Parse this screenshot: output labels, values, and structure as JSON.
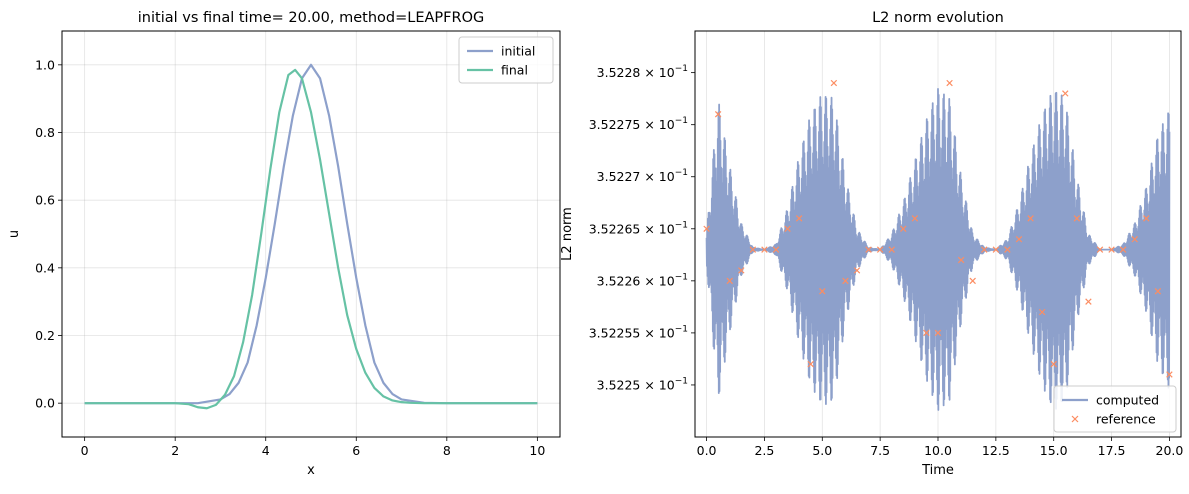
{
  "colors": {
    "initial": "#8da0cb",
    "final": "#66c2a5",
    "computed": "#8da0cb",
    "reference": "#fc8d62"
  },
  "chart_data": [
    {
      "type": "line",
      "title": "initial vs final time= 20.00, method=LEAPFROG",
      "xlabel": "x",
      "ylabel": "u",
      "xlim": [
        -0.5,
        10.5
      ],
      "ylim": [
        -0.1,
        1.1
      ],
      "xticks": [
        0,
        2,
        4,
        6,
        8,
        10
      ],
      "xtick_labels": [
        "0",
        "2",
        "4",
        "6",
        "8",
        "10"
      ],
      "yticks": [
        0.0,
        0.2,
        0.4,
        0.6,
        0.8,
        1.0
      ],
      "ytick_labels": [
        "0.0",
        "0.2",
        "0.4",
        "0.6",
        "0.8",
        "1.0"
      ],
      "grid": true,
      "legend": "upper-right",
      "series": [
        {
          "name": "initial",
          "x": [
            0,
            0.5,
            1,
            1.5,
            2,
            2.5,
            3,
            3.2,
            3.4,
            3.6,
            3.8,
            4,
            4.2,
            4.4,
            4.6,
            4.8,
            5,
            5.2,
            5.4,
            5.6,
            5.8,
            6,
            6.2,
            6.4,
            6.6,
            6.8,
            7,
            7.5,
            8,
            8.5,
            9,
            9.5,
            10
          ],
          "y": [
            0,
            0,
            0,
            0,
            0,
            0,
            0.011,
            0.027,
            0.06,
            0.12,
            0.23,
            0.37,
            0.53,
            0.7,
            0.85,
            0.96,
            1.0,
            0.96,
            0.85,
            0.7,
            0.53,
            0.37,
            0.23,
            0.12,
            0.06,
            0.027,
            0.011,
            0.001,
            0,
            0,
            0,
            0,
            0
          ]
        },
        {
          "name": "final",
          "x": [
            0,
            0.5,
            1,
            1.5,
            2,
            2.3,
            2.5,
            2.7,
            2.9,
            3.1,
            3.3,
            3.5,
            3.7,
            3.9,
            4.1,
            4.3,
            4.5,
            4.65,
            4.8,
            5,
            5.2,
            5.4,
            5.6,
            5.8,
            6,
            6.2,
            6.4,
            6.6,
            6.8,
            7,
            7.2,
            7.5,
            8,
            8.5,
            9,
            9.5,
            10
          ],
          "y": [
            0,
            0,
            0,
            0,
            0,
            -0.003,
            -0.012,
            -0.015,
            -0.005,
            0.025,
            0.08,
            0.18,
            0.32,
            0.5,
            0.69,
            0.86,
            0.97,
            0.985,
            0.96,
            0.86,
            0.72,
            0.56,
            0.4,
            0.26,
            0.16,
            0.09,
            0.045,
            0.02,
            0.008,
            0.003,
            0.001,
            0,
            0,
            0,
            0,
            0,
            0
          ]
        }
      ]
    },
    {
      "type": "line",
      "title": "L2 norm evolution",
      "xlabel": "Time",
      "ylabel": "L2 norm",
      "xlim": [
        -0.5,
        20.5
      ],
      "ylim": [
        0.352245,
        0.352284
      ],
      "yscale": "log",
      "xticks": [
        0,
        2.5,
        5,
        7.5,
        10,
        12.5,
        15,
        17.5,
        20
      ],
      "xtick_labels": [
        "0.0",
        "2.5",
        "5.0",
        "7.5",
        "10.0",
        "12.5",
        "15.0",
        "17.5",
        "20.0"
      ],
      "yticks": [
        0.35225,
        0.352255,
        0.35226,
        0.352265,
        0.35227,
        0.352275,
        0.35228
      ],
      "ytick_mantissas": [
        "3.5225",
        "3.52255",
        "3.5226",
        "3.52265",
        "3.5227",
        "3.52275",
        "3.5228"
      ],
      "ytick_base": "× 10",
      "ytick_exponent": "−1",
      "grid": true,
      "legend": "lower-right",
      "computed_baseline": 0.352263,
      "computed_envelope": {
        "name": "computed",
        "t": [
          0,
          0.5,
          1,
          1.5,
          2,
          2.5,
          3,
          3.5,
          4,
          4.5,
          5,
          5.5,
          6,
          6.5,
          7,
          7.5,
          8,
          8.5,
          9,
          9.5,
          10,
          10.5,
          11,
          11.5,
          12,
          12.5,
          13,
          13.5,
          14,
          14.5,
          15,
          15.5,
          16,
          16.5,
          17,
          17.5,
          18,
          18.5,
          19,
          19.5,
          20
        ],
        "amplitude": [
          1.5e-06,
          1.45e-05,
          8e-06,
          2.5e-06,
          2e-07,
          0,
          5e-07,
          4e-06,
          9e-06,
          1.3e-05,
          1.5e-05,
          1.45e-05,
          7e-06,
          2e-06,
          2e-07,
          0,
          1.5e-06,
          4.5e-06,
          8.5e-06,
          1.25e-05,
          1.55e-05,
          1.45e-05,
          7e-06,
          1.5e-06,
          2e-07,
          0,
          1e-06,
          4.5e-06,
          9e-06,
          1.3e-05,
          1.55e-05,
          1.45e-05,
          7e-06,
          1.5e-06,
          0,
          0,
          5e-07,
          2.5e-06,
          6e-06,
          1.1e-05,
          1.35e-05
        ]
      },
      "series": [
        {
          "name": "reference",
          "t": [
            0,
            0.5,
            1,
            1.5,
            2,
            2.5,
            3,
            3.5,
            4,
            4.5,
            5,
            5.5,
            6,
            6.5,
            7,
            7.5,
            8,
            8.5,
            9,
            9.5,
            10,
            10.5,
            11,
            11.5,
            12,
            12.5,
            13,
            13.5,
            14,
            14.5,
            15,
            15.5,
            16,
            16.5,
            17,
            17.5,
            18,
            18.5,
            19,
            19.5,
            20
          ],
          "values": [
            0.352265,
            0.352276,
            0.35226,
            0.352261,
            0.352263,
            0.352263,
            0.352263,
            0.352265,
            0.352266,
            0.352252,
            0.352259,
            0.352279,
            0.35226,
            0.352261,
            0.352263,
            0.352263,
            0.352263,
            0.352265,
            0.352266,
            0.352255,
            0.352255,
            0.352279,
            0.352262,
            0.35226,
            0.352263,
            0.352263,
            0.352263,
            0.352264,
            0.352266,
            0.352257,
            0.352252,
            0.352278,
            0.352266,
            0.352258,
            0.352263,
            0.352263,
            0.352263,
            0.352264,
            0.352266,
            0.352259,
            0.352251
          ]
        }
      ]
    }
  ]
}
